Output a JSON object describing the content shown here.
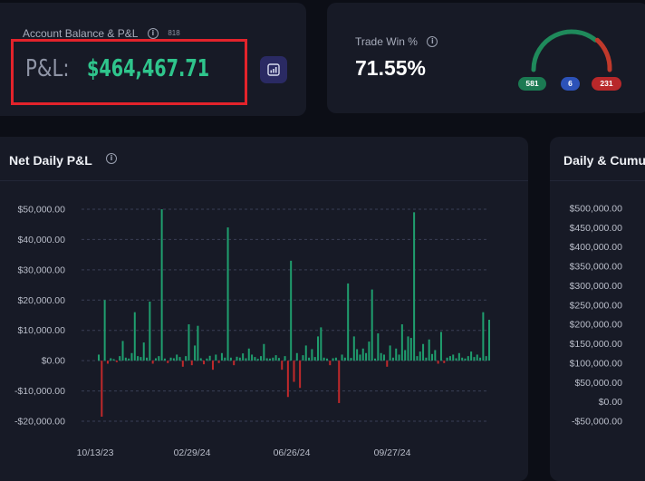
{
  "balance_card": {
    "title": "Account Balance & P&L",
    "info_icon": "info-icon",
    "count": "818",
    "pnl_label": "P&L:",
    "pnl_value": "$464,467.71",
    "report_icon": "report-chart-icon"
  },
  "win_card": {
    "title": "Trade Win %",
    "info_icon": "info-icon",
    "value": "71.55%",
    "gauge": {
      "wins": 581,
      "breakeven": 6,
      "losses": 231
    },
    "pills": {
      "wins": "581",
      "breakeven": "6",
      "losses": "231"
    },
    "colors": {
      "win": "#1f8a5b",
      "loss": "#c0392b",
      "breakeven": "#2c52b8"
    }
  },
  "daily_card": {
    "title": "Net Daily P&L",
    "info_icon": "info-icon"
  },
  "cum_card": {
    "title": "Daily & Cumu"
  },
  "chart_data": [
    {
      "type": "bar",
      "title": "Net Daily P&L",
      "xlabel": "",
      "ylabel": "",
      "ylim": [
        -20000,
        50000
      ],
      "yticks": [
        50000,
        40000,
        30000,
        20000,
        10000,
        0,
        -10000,
        -20000
      ],
      "ytick_labels": [
        "$50,000.00",
        "$40,000.00",
        "$30,000.00",
        "$20,000.00",
        "$10,000.00",
        "$0.00",
        "-$10,000.00",
        "-$20,000.00"
      ],
      "xtick_labels": [
        "10/13/23",
        "02/29/24",
        "06/26/24",
        "09/27/24"
      ],
      "grid": true,
      "colors": {
        "positive": "#1f9e6e",
        "negative": "#c0292b"
      },
      "values": [
        2000,
        -18500,
        20000,
        -1000,
        800,
        500,
        -500,
        1500,
        6500,
        1000,
        700,
        2500,
        16000,
        1500,
        1200,
        6000,
        1000,
        19500,
        -1000,
        800,
        1500,
        50000,
        700,
        -800,
        1000,
        800,
        2000,
        1200,
        -2000,
        1500,
        12000,
        -1500,
        5000,
        11500,
        800,
        -1200,
        700,
        1600,
        -3000,
        2000,
        -800,
        2500,
        1000,
        44000,
        1000,
        -1500,
        1300,
        1000,
        2400,
        800,
        4000,
        2000,
        1200,
        600,
        1500,
        5500,
        800,
        700,
        1000,
        1800,
        900,
        -3000,
        1500,
        -12000,
        33000,
        -7000,
        2500,
        -9000,
        1800,
        5000,
        1000,
        3800,
        1200,
        8000,
        11000,
        1000,
        700,
        -1500,
        800,
        1000,
        -14000,
        2000,
        1000,
        25500,
        900,
        8000,
        3800,
        2000,
        4000,
        2500,
        6300,
        23500,
        700,
        9000,
        2500,
        2000,
        -2000,
        5000,
        1000,
        4000,
        2000,
        12000,
        3500,
        8000,
        7500,
        49000,
        1500,
        3000,
        5500,
        1000,
        7000,
        2200,
        3500,
        -1000,
        9500,
        -800,
        1000,
        1500,
        2000,
        800,
        2500,
        1000,
        700,
        1500,
        3000,
        1200,
        2000,
        1000,
        16000,
        1500,
        13500
      ]
    },
    {
      "type": "line",
      "title": "Daily & Cumu",
      "ylim": [
        -50000,
        500000
      ],
      "yticks": [
        500000,
        450000,
        400000,
        350000,
        300000,
        250000,
        200000,
        150000,
        100000,
        50000,
        0,
        -50000
      ],
      "ytick_labels": [
        "$500,000.00",
        "$450,000.00",
        "$400,000.00",
        "$350,000.00",
        "$300,000.00",
        "$250,000.00",
        "$200,000.00",
        "$150,000.00",
        "$100,000.00",
        "$50,000.00",
        "$0.00",
        "-$50,000.00"
      ]
    }
  ]
}
